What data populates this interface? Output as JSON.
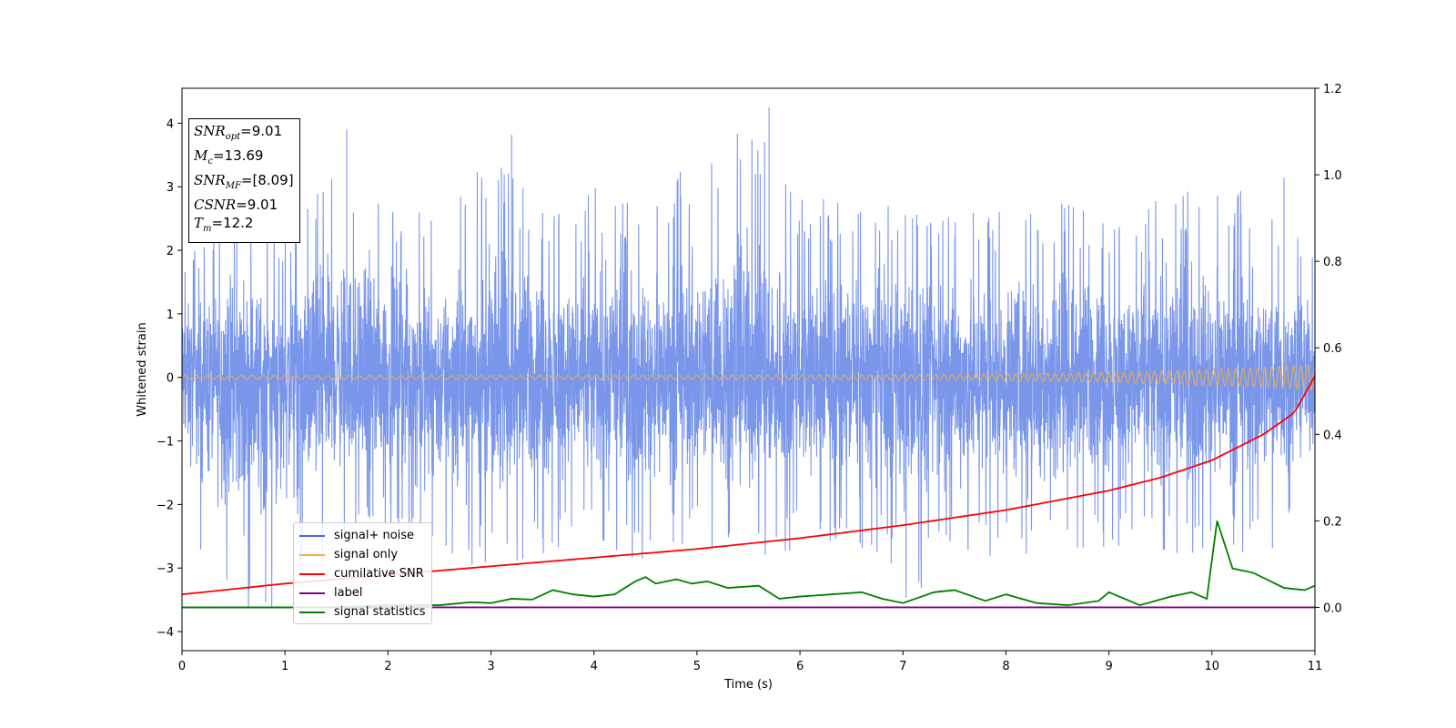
{
  "chart_data": {
    "type": "line",
    "xlabel": "Time (s)",
    "ylabel": "Whitened strain",
    "xlim": [
      0,
      11
    ],
    "ylim": [
      -4.3,
      4.55
    ],
    "y2lim": [
      -0.1,
      1.2
    ],
    "xticks": [
      0,
      1,
      2,
      3,
      4,
      5,
      6,
      7,
      8,
      9,
      10,
      11
    ],
    "yticks": [
      -4,
      -3,
      -2,
      -1,
      0,
      1,
      2,
      3,
      4
    ],
    "y2ticks": [
      0.0,
      0.2,
      0.4,
      0.6,
      0.8,
      1.0,
      1.2
    ],
    "legend_position": "lower-left",
    "grid": false,
    "series": [
      {
        "name": "signal+ noise",
        "color": "#4169E1",
        "axis": "left",
        "description": "whitened noise, roughly within -2.5 to 2.5 with spikes",
        "envelope": {
          "x": [
            0,
            0.5,
            1,
            1.5,
            2,
            2.5,
            3,
            3.5,
            4,
            4.5,
            5,
            5.5,
            6,
            6.5,
            7,
            7.5,
            8,
            8.5,
            9,
            9.5,
            10,
            10.5,
            11
          ],
          "upper": [
            2.0,
            2.7,
            2.4,
            3.4,
            2.9,
            2.5,
            3.5,
            2.8,
            3.1,
            2.6,
            3.55,
            4.15,
            2.9,
            2.7,
            2.7,
            2.6,
            2.8,
            2.8,
            2.6,
            2.9,
            3.0,
            2.9,
            2.0
          ],
          "lower": [
            -2.2,
            -3.9,
            -3.7,
            -2.6,
            -2.4,
            -3.0,
            -3.0,
            -2.9,
            -2.7,
            -2.9,
            -2.6,
            -3.0,
            -2.7,
            -2.5,
            -3.6,
            -2.8,
            -3.0,
            -2.7,
            -2.8,
            -2.9,
            -2.7,
            -2.9,
            -1.9
          ]
        },
        "spike_times": [
          1.6,
          3.2,
          5.7,
          10.7
        ]
      },
      {
        "name": "signal only",
        "color": "#F5B041",
        "axis": "left",
        "description": "chirp oscillating about 0, amplitude growing toward the end",
        "amplitude_start": 0.03,
        "amplitude_end": 0.2
      },
      {
        "name": "cumilative SNR",
        "color": "#FF0000",
        "axis": "right",
        "x": [
          0,
          1,
          2,
          3,
          4,
          5,
          6,
          7,
          8,
          9,
          9.5,
          10,
          10.5,
          10.8,
          11
        ],
        "y": [
          0.03,
          0.055,
          0.075,
          0.095,
          0.115,
          0.135,
          0.16,
          0.19,
          0.225,
          0.27,
          0.3,
          0.34,
          0.4,
          0.45,
          0.535
        ]
      },
      {
        "name": "label",
        "color": "#800080",
        "axis": "right",
        "x": [
          0,
          11
        ],
        "y": [
          0.0,
          0.0
        ]
      },
      {
        "name": "signal statistics",
        "color": "#008000",
        "axis": "right",
        "x": [
          0,
          0.5,
          1,
          1.5,
          2,
          2.5,
          2.8,
          3.0,
          3.2,
          3.4,
          3.6,
          3.8,
          4.0,
          4.2,
          4.4,
          4.5,
          4.6,
          4.8,
          4.95,
          5.1,
          5.3,
          5.6,
          5.8,
          6.0,
          6.3,
          6.6,
          6.8,
          7.0,
          7.3,
          7.5,
          7.8,
          8.0,
          8.3,
          8.6,
          8.9,
          9.0,
          9.3,
          9.6,
          9.8,
          9.95,
          10.05,
          10.2,
          10.4,
          10.7,
          10.9,
          11
        ],
        "y": [
          0.0,
          0.0,
          0.0,
          0.0,
          0.005,
          0.005,
          0.012,
          0.01,
          0.02,
          0.018,
          0.04,
          0.03,
          0.025,
          0.03,
          0.06,
          0.07,
          0.055,
          0.065,
          0.055,
          0.06,
          0.045,
          0.05,
          0.02,
          0.025,
          0.03,
          0.035,
          0.02,
          0.01,
          0.035,
          0.04,
          0.015,
          0.03,
          0.01,
          0.005,
          0.015,
          0.035,
          0.005,
          0.025,
          0.035,
          0.02,
          0.2,
          0.09,
          0.08,
          0.045,
          0.04,
          0.05
        ]
      }
    ]
  },
  "info_box": {
    "snr_opt_label": "SNR",
    "snr_opt_sub": "opt",
    "snr_opt_value": "=9.01",
    "mc_label": "M",
    "mc_sub": "c",
    "mc_value": "=13.69",
    "snr_mf_label": "SNR",
    "snr_mf_sub": "MF",
    "snr_mf_value": "=[8.09]",
    "csnr_label": "CSNR",
    "csnr_value": "=9.01",
    "tm_label": "T",
    "tm_sub": "m",
    "tm_value": "=12.2"
  }
}
